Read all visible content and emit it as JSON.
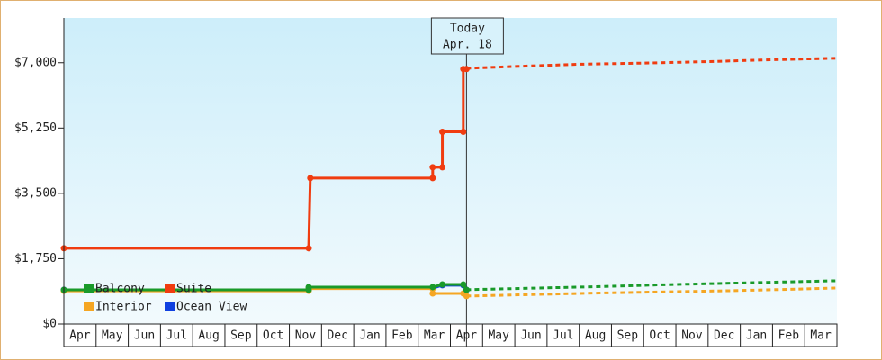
{
  "chart_data": {
    "type": "line",
    "categories": [
      "Apr",
      "May",
      "Jun",
      "Jul",
      "Aug",
      "Sep",
      "Oct",
      "Nov",
      "Dec",
      "Jan",
      "Feb",
      "Mar",
      "Apr",
      "May",
      "Jun",
      "Jul",
      "Aug",
      "Sep",
      "Oct",
      "Nov",
      "Dec",
      "Jan",
      "Feb",
      "Mar"
    ],
    "xlim": [
      0,
      24
    ],
    "ylim": [
      0,
      8200
    ],
    "yticks": [
      {
        "value": 0,
        "label": "$0"
      },
      {
        "value": 1750,
        "label": "$1,750"
      },
      {
        "value": 3500,
        "label": "$3,500"
      },
      {
        "value": 5250,
        "label": "$5,250"
      },
      {
        "value": 7000,
        "label": "$7,000"
      }
    ],
    "today": {
      "x": 12.5,
      "label": [
        "Today",
        "Apr. 18"
      ]
    },
    "series": [
      {
        "name": "Balcony",
        "color": "#1a9a2a",
        "x": [
          0,
          7.6,
          7.6,
          11.45,
          11.75,
          12.4,
          12.5
        ],
        "values": [
          917,
          917,
          990,
          990,
          1060,
          1060,
          917
        ],
        "forecast": {
          "x": [
            12.5,
            14.5,
            16.5,
            18.5,
            20.5,
            22.5,
            24
          ],
          "values": [
            920,
            960,
            1000,
            1050,
            1090,
            1130,
            1160
          ]
        }
      },
      {
        "name": "Suite",
        "color": "#f03c10",
        "x": [
          0,
          7.6,
          7.65,
          11.45,
          11.45,
          11.75,
          11.75,
          12.4,
          12.4,
          12.5
        ],
        "values": [
          2030,
          2030,
          3910,
          3910,
          4200,
          4200,
          5150,
          5150,
          6830,
          6830
        ],
        "forecast": {
          "x": [
            12.5,
            14,
            16,
            18,
            20,
            22,
            24
          ],
          "values": [
            6850,
            6900,
            6960,
            6990,
            7030,
            7080,
            7120
          ]
        }
      },
      {
        "name": "Interior",
        "color": "#f5a623",
        "x": [
          0,
          7.6,
          7.6,
          11.45,
          11.45,
          12.4,
          12.5
        ],
        "values": [
          890,
          890,
          950,
          950,
          820,
          820,
          750
        ],
        "forecast": {
          "x": [
            12.5,
            14.5,
            16.5,
            18.5,
            20.5,
            22.5,
            24
          ],
          "values": [
            750,
            790,
            830,
            860,
            890,
            930,
            965
          ]
        }
      },
      {
        "name": "Ocean View",
        "color": "#1040e0",
        "x": [
          0,
          7.6,
          7.6,
          11.45,
          11.75,
          12.4,
          12.5
        ],
        "values": [
          917,
          917,
          960,
          960,
          1040,
          1040,
          917
        ]
      }
    ]
  }
}
